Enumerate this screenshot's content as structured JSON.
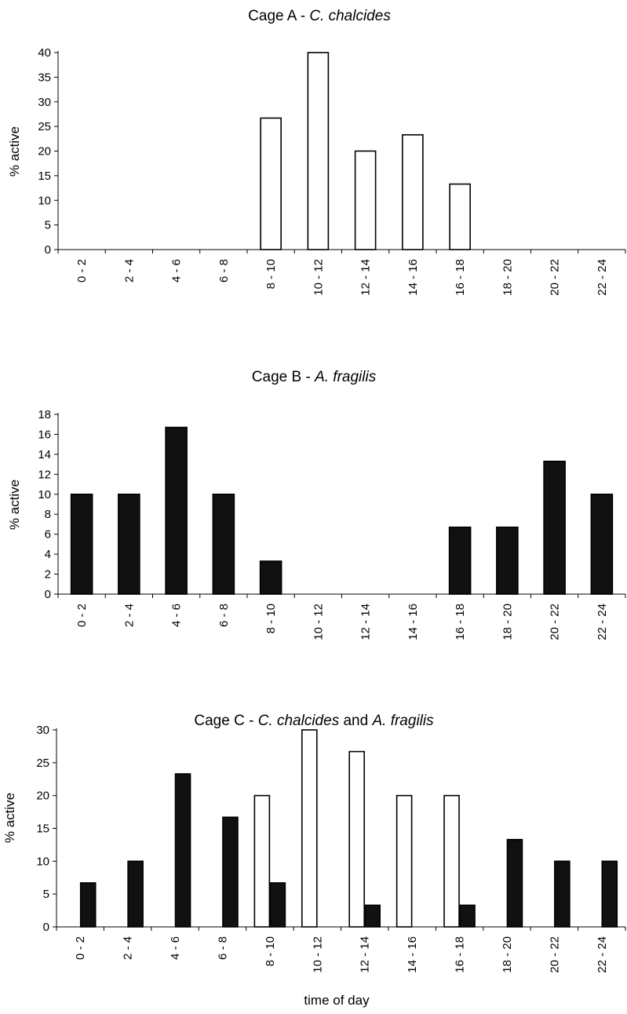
{
  "charts": [
    {
      "type": "bar",
      "title_prefix": "Cage A - ",
      "title_species": "C. chalcides",
      "ylabel": "% active",
      "xlabel": "",
      "ylim": [
        0,
        40
      ],
      "yticks": [
        0,
        5,
        10,
        15,
        20,
        25,
        30,
        35,
        40
      ],
      "categories": [
        "0 - 2",
        "2 - 4",
        "4 - 6",
        "6 - 8",
        "8 - 10",
        "10 - 12",
        "12 - 14",
        "14 - 16",
        "16 - 18",
        "18 - 20",
        "20 - 22",
        "22 - 24"
      ],
      "series": [
        {
          "name": "C. chalcides",
          "fill": "#ffffff",
          "values": [
            0,
            0,
            0,
            0,
            26.7,
            40,
            20,
            23.3,
            13.3,
            0,
            0,
            0
          ]
        }
      ]
    },
    {
      "type": "bar",
      "title_prefix": "Cage B - ",
      "title_species": "A. fragilis",
      "ylabel": "% active",
      "xlabel": "",
      "ylim": [
        0,
        18
      ],
      "yticks": [
        0,
        2,
        4,
        6,
        8,
        10,
        12,
        14,
        16,
        18
      ],
      "categories": [
        "0 - 2",
        "2 - 4",
        "4 - 6",
        "6 - 8",
        "8 - 10",
        "10 - 12",
        "12 - 14",
        "14 - 16",
        "16 - 18",
        "18 - 20",
        "20 - 22",
        "22 - 24"
      ],
      "series": [
        {
          "name": "A. fragilis",
          "fill": "#111111",
          "values": [
            10,
            10,
            16.7,
            10,
            3.3,
            0,
            0,
            0,
            6.7,
            6.7,
            13.3,
            10
          ]
        }
      ]
    },
    {
      "type": "bar",
      "title_prefix": "Cage C - ",
      "title_species": "C. chalcides",
      "title_mid": " and ",
      "title_species2": "A. fragilis",
      "ylabel": "% active",
      "xlabel": "time of day",
      "ylim": [
        0,
        30
      ],
      "yticks": [
        0,
        5,
        10,
        15,
        20,
        25,
        30
      ],
      "categories": [
        "0 - 2",
        "2 - 4",
        "4 - 6",
        "6 - 8",
        "8 - 10",
        "10 - 12",
        "12 - 14",
        "14 - 16",
        "16 - 18",
        "18 - 20",
        "20 - 22",
        "22 - 24"
      ],
      "series": [
        {
          "name": "C. chalcides",
          "fill": "#ffffff",
          "values": [
            0,
            0,
            0,
            0,
            20,
            30,
            26.7,
            20,
            20,
            0,
            0,
            0
          ]
        },
        {
          "name": "A. fragilis",
          "fill": "#111111",
          "values": [
            6.7,
            10,
            23.3,
            16.7,
            6.7,
            0,
            3.3,
            0,
            3.3,
            13.3,
            10,
            10
          ]
        }
      ]
    }
  ],
  "chart_data": [
    {
      "type": "bar",
      "title": "Cage A - C. chalcides",
      "xlabel": "",
      "ylabel": "% active",
      "ylim": [
        0,
        40
      ],
      "categories": [
        "0 - 2",
        "2 - 4",
        "4 - 6",
        "6 - 8",
        "8 - 10",
        "10 - 12",
        "12 - 14",
        "14 - 16",
        "16 - 18",
        "18 - 20",
        "20 - 22",
        "22 - 24"
      ],
      "values": [
        0,
        0,
        0,
        0,
        26.7,
        40,
        20,
        23.3,
        13.3,
        0,
        0,
        0
      ],
      "grid": false,
      "legend": "none"
    },
    {
      "type": "bar",
      "title": "Cage B - A. fragilis",
      "xlabel": "",
      "ylabel": "% active",
      "ylim": [
        0,
        18
      ],
      "categories": [
        "0 - 2",
        "2 - 4",
        "4 - 6",
        "6 - 8",
        "8 - 10",
        "10 - 12",
        "12 - 14",
        "14 - 16",
        "16 - 18",
        "18 - 20",
        "20 - 22",
        "22 - 24"
      ],
      "values": [
        10,
        10,
        16.7,
        10,
        3.3,
        0,
        0,
        0,
        6.7,
        6.7,
        13.3,
        10
      ],
      "grid": false,
      "legend": "none"
    },
    {
      "type": "bar",
      "title": "Cage C - C. chalcides and A. fragilis",
      "xlabel": "time of day",
      "ylabel": "% active",
      "ylim": [
        0,
        30
      ],
      "categories": [
        "0 - 2",
        "2 - 4",
        "4 - 6",
        "6 - 8",
        "8 - 10",
        "10 - 12",
        "12 - 14",
        "14 - 16",
        "16 - 18",
        "18 - 20",
        "20 - 22",
        "22 - 24"
      ],
      "series": [
        {
          "values": [
            0,
            0,
            0,
            0,
            20,
            30,
            26.7,
            20,
            20,
            0,
            0,
            0
          ]
        },
        {
          "values": [
            6.7,
            10,
            23.3,
            16.7,
            6.7,
            0,
            3.3,
            0,
            3.3,
            13.3,
            10,
            10
          ]
        }
      ],
      "grid": false,
      "legend": "none"
    }
  ]
}
